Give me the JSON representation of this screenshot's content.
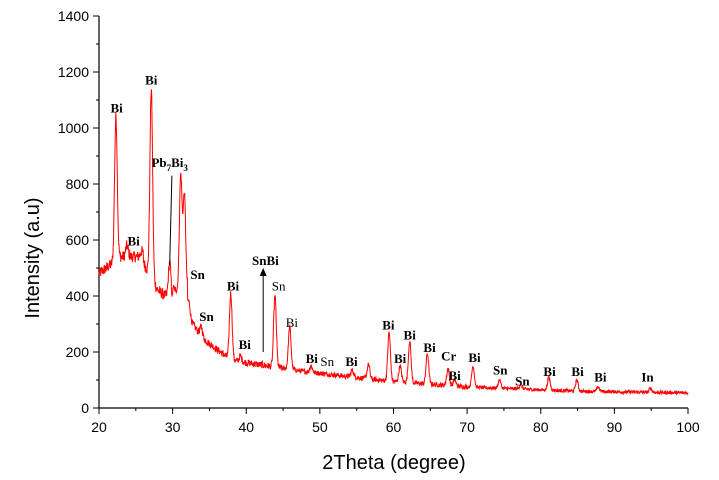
{
  "chart_data": {
    "type": "line",
    "title": "",
    "xlabel": "2Theta (degree)",
    "ylabel": "Intensity (a.u)",
    "xlim": [
      20,
      100
    ],
    "ylim": [
      0,
      1400
    ],
    "x_ticks": [
      "20",
      "30",
      "40",
      "50",
      "60",
      "70",
      "80",
      "90",
      "100"
    ],
    "y_ticks": [
      "0",
      "200",
      "400",
      "600",
      "800",
      "1000",
      "1200",
      "1400"
    ],
    "grid": false,
    "legend": "none",
    "series_color": "#ff0000",
    "peaks": [
      {
        "x": 22.3,
        "y": 1040
      },
      {
        "x": 23.8,
        "y": 580
      },
      {
        "x": 25.8,
        "y": 560
      },
      {
        "x": 27.1,
        "y": 1140
      },
      {
        "x": 29.6,
        "y": 520
      },
      {
        "x": 31.1,
        "y": 830
      },
      {
        "x": 31.6,
        "y": 760
      },
      {
        "x": 32.2,
        "y": 380
      },
      {
        "x": 33.9,
        "y": 290
      },
      {
        "x": 37.9,
        "y": 410
      },
      {
        "x": 39.2,
        "y": 185
      },
      {
        "x": 43.9,
        "y": 400
      },
      {
        "x": 45.9,
        "y": 290
      },
      {
        "x": 48.8,
        "y": 150
      },
      {
        "x": 50.9,
        "y": 120
      },
      {
        "x": 54.4,
        "y": 135
      },
      {
        "x": 56.6,
        "y": 155
      },
      {
        "x": 59.4,
        "y": 270
      },
      {
        "x": 60.9,
        "y": 150
      },
      {
        "x": 62.2,
        "y": 240
      },
      {
        "x": 64.6,
        "y": 195
      },
      {
        "x": 67.4,
        "y": 140
      },
      {
        "x": 68.3,
        "y": 100
      },
      {
        "x": 70.8,
        "y": 150
      },
      {
        "x": 74.4,
        "y": 100
      },
      {
        "x": 77.3,
        "y": 85
      },
      {
        "x": 81.1,
        "y": 110
      },
      {
        "x": 84.9,
        "y": 100
      },
      {
        "x": 87.8,
        "y": 75
      },
      {
        "x": 94.9,
        "y": 70
      }
    ],
    "annotations": [
      {
        "text": "Bi",
        "x": 22.4,
        "y": 1055,
        "weight": "bold"
      },
      {
        "text": "Bi",
        "x": 27.1,
        "y": 1155,
        "weight": "bold"
      },
      {
        "text": "Bi",
        "x": 24.7,
        "y": 580,
        "weight": "bold"
      },
      {
        "text": "Pb",
        "sub": "7",
        "text2": "Bi",
        "sub2": "3",
        "x": 29.6,
        "y": 860,
        "weight": "bold"
      },
      {
        "text": "Sn",
        "x": 33.4,
        "y": 460,
        "weight": "bold"
      },
      {
        "text": "Sn",
        "x": 34.6,
        "y": 310,
        "weight": "bold"
      },
      {
        "text": "Bi",
        "x": 38.2,
        "y": 420,
        "weight": "bold"
      },
      {
        "text": "Bi",
        "x": 39.8,
        "y": 210,
        "weight": "bold"
      },
      {
        "text": "SnBi",
        "x": 42.6,
        "y": 510,
        "weight": "bold"
      },
      {
        "text": "Sn",
        "x": 44.4,
        "y": 420,
        "weight": "normal"
      },
      {
        "text": "Bi",
        "x": 46.2,
        "y": 290,
        "weight": "normal"
      },
      {
        "text": "Bi",
        "x": 48.9,
        "y": 160,
        "weight": "bold"
      },
      {
        "text": "Sn",
        "x": 51.0,
        "y": 150,
        "weight": "normal"
      },
      {
        "text": "Bi",
        "x": 54.3,
        "y": 150,
        "weight": "bold"
      },
      {
        "text": "Bi",
        "x": 59.3,
        "y": 280,
        "weight": "bold"
      },
      {
        "text": "Bi",
        "x": 60.9,
        "y": 160,
        "weight": "bold"
      },
      {
        "text": "Bi",
        "x": 62.2,
        "y": 245,
        "weight": "bold"
      },
      {
        "text": "Bi",
        "x": 64.9,
        "y": 200,
        "weight": "bold"
      },
      {
        "text": "Cr",
        "x": 67.5,
        "y": 170,
        "weight": "bold"
      },
      {
        "text": "Bi",
        "x": 71.0,
        "y": 165,
        "weight": "bold"
      },
      {
        "text": "Bi",
        "x": 68.3,
        "y": 100,
        "weight": "bold"
      },
      {
        "text": "Sn",
        "x": 74.5,
        "y": 120,
        "weight": "bold"
      },
      {
        "text": "Sn",
        "x": 77.5,
        "y": 80,
        "weight": "bold"
      },
      {
        "text": "Bi",
        "x": 81.2,
        "y": 115,
        "weight": "bold"
      },
      {
        "text": "Bi",
        "x": 85.0,
        "y": 115,
        "weight": "bold"
      },
      {
        "text": "Bi",
        "x": 88.1,
        "y": 95,
        "weight": "bold"
      },
      {
        "text": "In",
        "x": 94.5,
        "y": 95,
        "weight": "bold"
      }
    ],
    "arrow": {
      "x": 42.3,
      "y_from": 200,
      "y_to": 500
    },
    "leader_line": {
      "x1": 29.6,
      "y1": 510,
      "x2": 29.9,
      "y2": 830
    }
  }
}
